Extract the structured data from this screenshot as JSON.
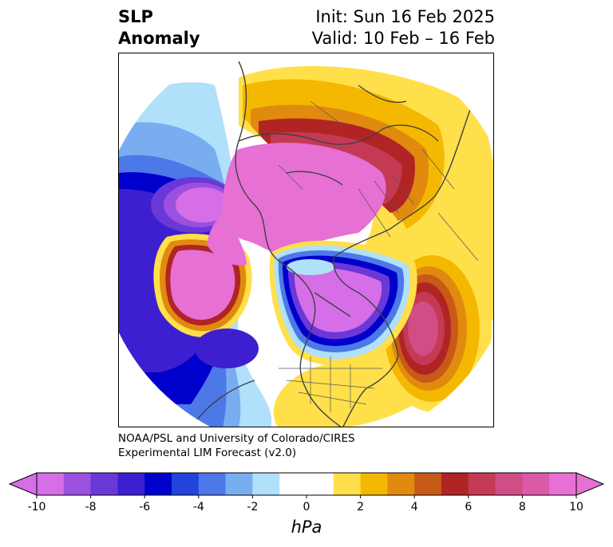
{
  "title": {
    "left_line1": "SLP",
    "left_line2": "Anomaly",
    "right_line1": "Init: Sun 16 Feb 2025",
    "right_line2": "Valid: 10 Feb – 16 Feb"
  },
  "credit": {
    "line1": "NOAA/PSL and University of Colorado/CIRES",
    "line2": "Experimental LIM Forecast (v2.0)"
  },
  "colorbar": {
    "unit": "hPa",
    "ticks": [
      "-10",
      "-8",
      "-6",
      "-4",
      "-2",
      "0",
      "2",
      "4",
      "6",
      "8",
      "10"
    ],
    "range": [
      -10,
      10
    ],
    "colors": [
      "#d66ee8",
      "#9b50e0",
      "#6b38d8",
      "#3d1fd0",
      "#0000cc",
      "#2244dd",
      "#4d78e8",
      "#78aef0",
      "#b0e0fa",
      "#ffffff",
      "#ffffff",
      "#ffe04a",
      "#f5b800",
      "#e08a10",
      "#c85a18",
      "#b02424",
      "#c43a55",
      "#d04e85",
      "#da5aa8",
      "#e670d4"
    ],
    "extend": "both"
  },
  "map": {
    "projection": "north polar stereographic",
    "field": "sea level pressure anomaly"
  }
}
